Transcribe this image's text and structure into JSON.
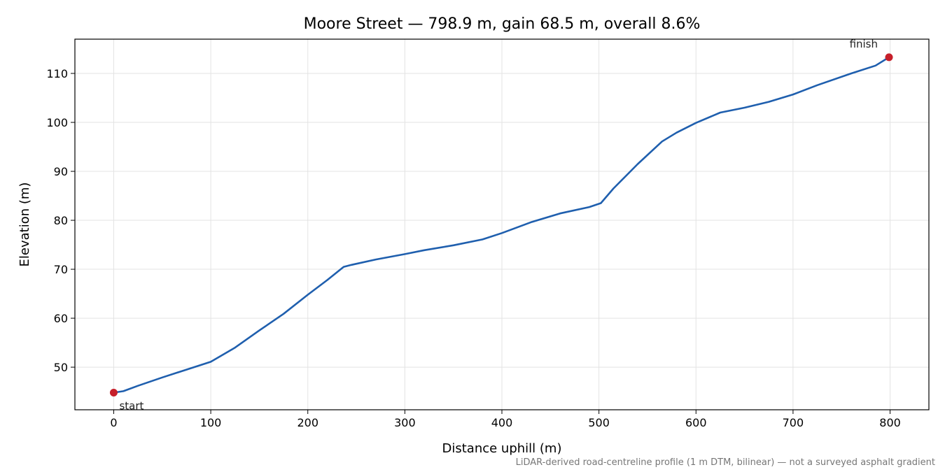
{
  "chart_data": {
    "type": "line",
    "title": "Moore Street — 798.9 m, gain 68.5 m, overall 8.6%",
    "xlabel": "Distance uphill (m)",
    "ylabel": "Elevation (m)",
    "xlim": [
      -40,
      840
    ],
    "ylim": [
      41.3,
      117
    ],
    "xticks": [
      0,
      100,
      200,
      300,
      400,
      500,
      600,
      700,
      800
    ],
    "yticks": [
      50,
      60,
      70,
      80,
      90,
      100,
      110
    ],
    "grid": true,
    "footnote": "LiDAR-derived road-centreline profile (1 m DTM, bilinear) — not a surveyed asphalt gradient",
    "series": [
      {
        "color": "#1f5fae",
        "x": [
          0,
          10,
          25,
          50,
          75,
          100,
          125,
          150,
          175,
          200,
          220,
          237,
          245,
          270,
          300,
          320,
          350,
          380,
          400,
          430,
          460,
          490,
          502,
          515,
          540,
          565,
          580,
          600,
          625,
          650,
          675,
          700,
          725,
          760,
          785,
          798.9
        ],
        "y": [
          44.8,
          45.1,
          46.2,
          47.9,
          49.5,
          51.1,
          54.0,
          57.5,
          60.9,
          64.8,
          67.8,
          70.5,
          70.9,
          72.0,
          73.1,
          73.9,
          74.9,
          76.1,
          77.4,
          79.6,
          81.4,
          82.7,
          83.5,
          86.5,
          91.5,
          96.1,
          97.9,
          99.9,
          102.0,
          103.0,
          104.2,
          105.7,
          107.6,
          110.0,
          111.6,
          113.3
        ]
      }
    ],
    "annotations": [
      {
        "text": "start",
        "x": 0,
        "y": 44.8
      },
      {
        "text": "finish",
        "x": 798.9,
        "y": 113.3
      }
    ]
  }
}
